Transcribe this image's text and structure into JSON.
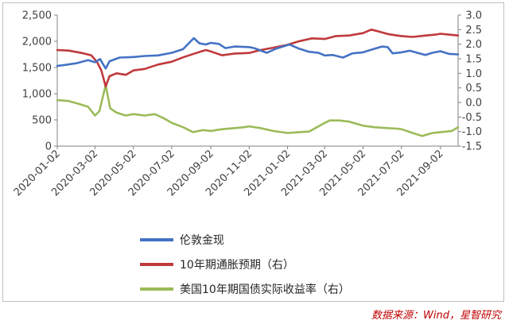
{
  "chart_data": {
    "type": "line",
    "x_tick_labels": [
      "2020-01-02",
      "2020-03-02",
      "2020-05-02",
      "2020-07-02",
      "2020-09-02",
      "2020-11-02",
      "2021-01-02",
      "2021-03-02",
      "2021-05-02",
      "2021-07-02",
      "2021-09-02"
    ],
    "x_range": [
      "2020-01-02",
      "2021-09-30"
    ],
    "y_left": {
      "ticks": [
        "0",
        "500",
        "1,000",
        "1,500",
        "2,000",
        "2,500"
      ],
      "ylim": [
        0,
        2500
      ]
    },
    "y_right": {
      "ticks": [
        "-1.5",
        "-1.0",
        "-0.5",
        "0.0",
        "0.5",
        "1.0",
        "1.5",
        "2.0",
        "2.5",
        "3.0"
      ],
      "ylim": [
        -1.5,
        3.0
      ]
    },
    "grid": false,
    "legend_position": "bottom",
    "series": [
      {
        "name": "伦敦金现",
        "axis": "left",
        "color": "#4472c4",
        "points": [
          [
            "2020-01-02",
            1530
          ],
          [
            "2020-01-15",
            1550
          ],
          [
            "2020-02-01",
            1580
          ],
          [
            "2020-02-20",
            1640
          ],
          [
            "2020-03-02",
            1600
          ],
          [
            "2020-03-10",
            1660
          ],
          [
            "2020-03-19",
            1480
          ],
          [
            "2020-03-25",
            1620
          ],
          [
            "2020-04-10",
            1690
          ],
          [
            "2020-05-02",
            1700
          ],
          [
            "2020-05-20",
            1720
          ],
          [
            "2020-06-10",
            1730
          ],
          [
            "2020-07-02",
            1780
          ],
          [
            "2020-07-20",
            1850
          ],
          [
            "2020-08-06",
            2060
          ],
          [
            "2020-08-15",
            1960
          ],
          [
            "2020-08-25",
            1940
          ],
          [
            "2020-09-02",
            1970
          ],
          [
            "2020-09-15",
            1950
          ],
          [
            "2020-09-25",
            1870
          ],
          [
            "2020-10-10",
            1900
          ],
          [
            "2020-11-02",
            1890
          ],
          [
            "2020-11-10",
            1870
          ],
          [
            "2020-11-30",
            1780
          ],
          [
            "2020-12-15",
            1860
          ],
          [
            "2021-01-05",
            1940
          ],
          [
            "2021-01-20",
            1860
          ],
          [
            "2021-02-05",
            1800
          ],
          [
            "2021-02-20",
            1780
          ],
          [
            "2021-03-02",
            1730
          ],
          [
            "2021-03-15",
            1740
          ],
          [
            "2021-03-31",
            1690
          ],
          [
            "2021-04-15",
            1770
          ],
          [
            "2021-05-02",
            1790
          ],
          [
            "2021-05-15",
            1840
          ],
          [
            "2021-06-01",
            1900
          ],
          [
            "2021-06-10",
            1890
          ],
          [
            "2021-06-18",
            1770
          ],
          [
            "2021-07-02",
            1790
          ],
          [
            "2021-07-15",
            1820
          ],
          [
            "2021-08-09",
            1740
          ],
          [
            "2021-08-20",
            1780
          ],
          [
            "2021-09-02",
            1810
          ],
          [
            "2021-09-15",
            1760
          ],
          [
            "2021-09-30",
            1750
          ]
        ]
      },
      {
        "name": "10年期通胀预期（右）",
        "axis": "right",
        "color": "#c0393b",
        "points": [
          [
            "2020-01-02",
            1.8
          ],
          [
            "2020-01-20",
            1.78
          ],
          [
            "2020-02-10",
            1.7
          ],
          [
            "2020-02-25",
            1.62
          ],
          [
            "2020-03-05",
            1.4
          ],
          [
            "2020-03-12",
            1.1
          ],
          [
            "2020-03-19",
            0.55
          ],
          [
            "2020-03-25",
            0.9
          ],
          [
            "2020-04-05",
            1.0
          ],
          [
            "2020-04-20",
            0.95
          ],
          [
            "2020-05-02",
            1.1
          ],
          [
            "2020-05-20",
            1.15
          ],
          [
            "2020-06-10",
            1.3
          ],
          [
            "2020-07-02",
            1.4
          ],
          [
            "2020-07-20",
            1.55
          ],
          [
            "2020-08-10",
            1.7
          ],
          [
            "2020-08-25",
            1.8
          ],
          [
            "2020-09-02",
            1.75
          ],
          [
            "2020-09-20",
            1.62
          ],
          [
            "2020-10-10",
            1.68
          ],
          [
            "2020-11-02",
            1.7
          ],
          [
            "2020-11-20",
            1.8
          ],
          [
            "2020-12-10",
            1.88
          ],
          [
            "2021-01-02",
            1.98
          ],
          [
            "2021-01-20",
            2.1
          ],
          [
            "2021-02-10",
            2.2
          ],
          [
            "2021-03-02",
            2.18
          ],
          [
            "2021-03-20",
            2.28
          ],
          [
            "2021-04-10",
            2.3
          ],
          [
            "2021-05-02",
            2.38
          ],
          [
            "2021-05-15",
            2.5
          ],
          [
            "2021-05-25",
            2.45
          ],
          [
            "2021-06-10",
            2.35
          ],
          [
            "2021-06-25",
            2.3
          ],
          [
            "2021-07-02",
            2.28
          ],
          [
            "2021-07-20",
            2.25
          ],
          [
            "2021-08-10",
            2.3
          ],
          [
            "2021-08-25",
            2.33
          ],
          [
            "2021-09-02",
            2.36
          ],
          [
            "2021-09-20",
            2.32
          ],
          [
            "2021-09-30",
            2.3
          ]
        ]
      },
      {
        "name": "美国10年期国债实际收益率（右）",
        "axis": "right",
        "color": "#9bbb59",
        "points": [
          [
            "2020-01-02",
            0.08
          ],
          [
            "2020-01-20",
            0.05
          ],
          [
            "2020-02-05",
            -0.05
          ],
          [
            "2020-02-20",
            -0.15
          ],
          [
            "2020-03-02",
            -0.45
          ],
          [
            "2020-03-09",
            -0.3
          ],
          [
            "2020-03-19",
            0.6
          ],
          [
            "2020-03-26",
            -0.2
          ],
          [
            "2020-04-05",
            -0.35
          ],
          [
            "2020-04-20",
            -0.45
          ],
          [
            "2020-05-02",
            -0.4
          ],
          [
            "2020-05-20",
            -0.45
          ],
          [
            "2020-06-05",
            -0.4
          ],
          [
            "2020-06-20",
            -0.55
          ],
          [
            "2020-07-02",
            -0.7
          ],
          [
            "2020-07-20",
            -0.85
          ],
          [
            "2020-08-05",
            -1.02
          ],
          [
            "2020-08-20",
            -0.95
          ],
          [
            "2020-09-02",
            -0.98
          ],
          [
            "2020-09-20",
            -0.92
          ],
          [
            "2020-10-10",
            -0.88
          ],
          [
            "2020-10-25",
            -0.85
          ],
          [
            "2020-11-02",
            -0.82
          ],
          [
            "2020-11-20",
            -0.88
          ],
          [
            "2020-12-10",
            -0.98
          ],
          [
            "2021-01-02",
            -1.05
          ],
          [
            "2021-01-20",
            -1.02
          ],
          [
            "2021-02-05",
            -1.0
          ],
          [
            "2021-02-20",
            -0.82
          ],
          [
            "2021-03-02",
            -0.7
          ],
          [
            "2021-03-10",
            -0.62
          ],
          [
            "2021-03-25",
            -0.62
          ],
          [
            "2021-04-10",
            -0.66
          ],
          [
            "2021-05-02",
            -0.8
          ],
          [
            "2021-05-20",
            -0.85
          ],
          [
            "2021-06-10",
            -0.88
          ],
          [
            "2021-06-25",
            -0.9
          ],
          [
            "2021-07-02",
            -0.92
          ],
          [
            "2021-07-20",
            -1.05
          ],
          [
            "2021-08-04",
            -1.15
          ],
          [
            "2021-08-20",
            -1.05
          ],
          [
            "2021-09-02",
            -1.02
          ],
          [
            "2021-09-20",
            -0.98
          ],
          [
            "2021-09-30",
            -0.85
          ]
        ]
      }
    ]
  },
  "source_note": "数据来源：Wind，星智研究"
}
